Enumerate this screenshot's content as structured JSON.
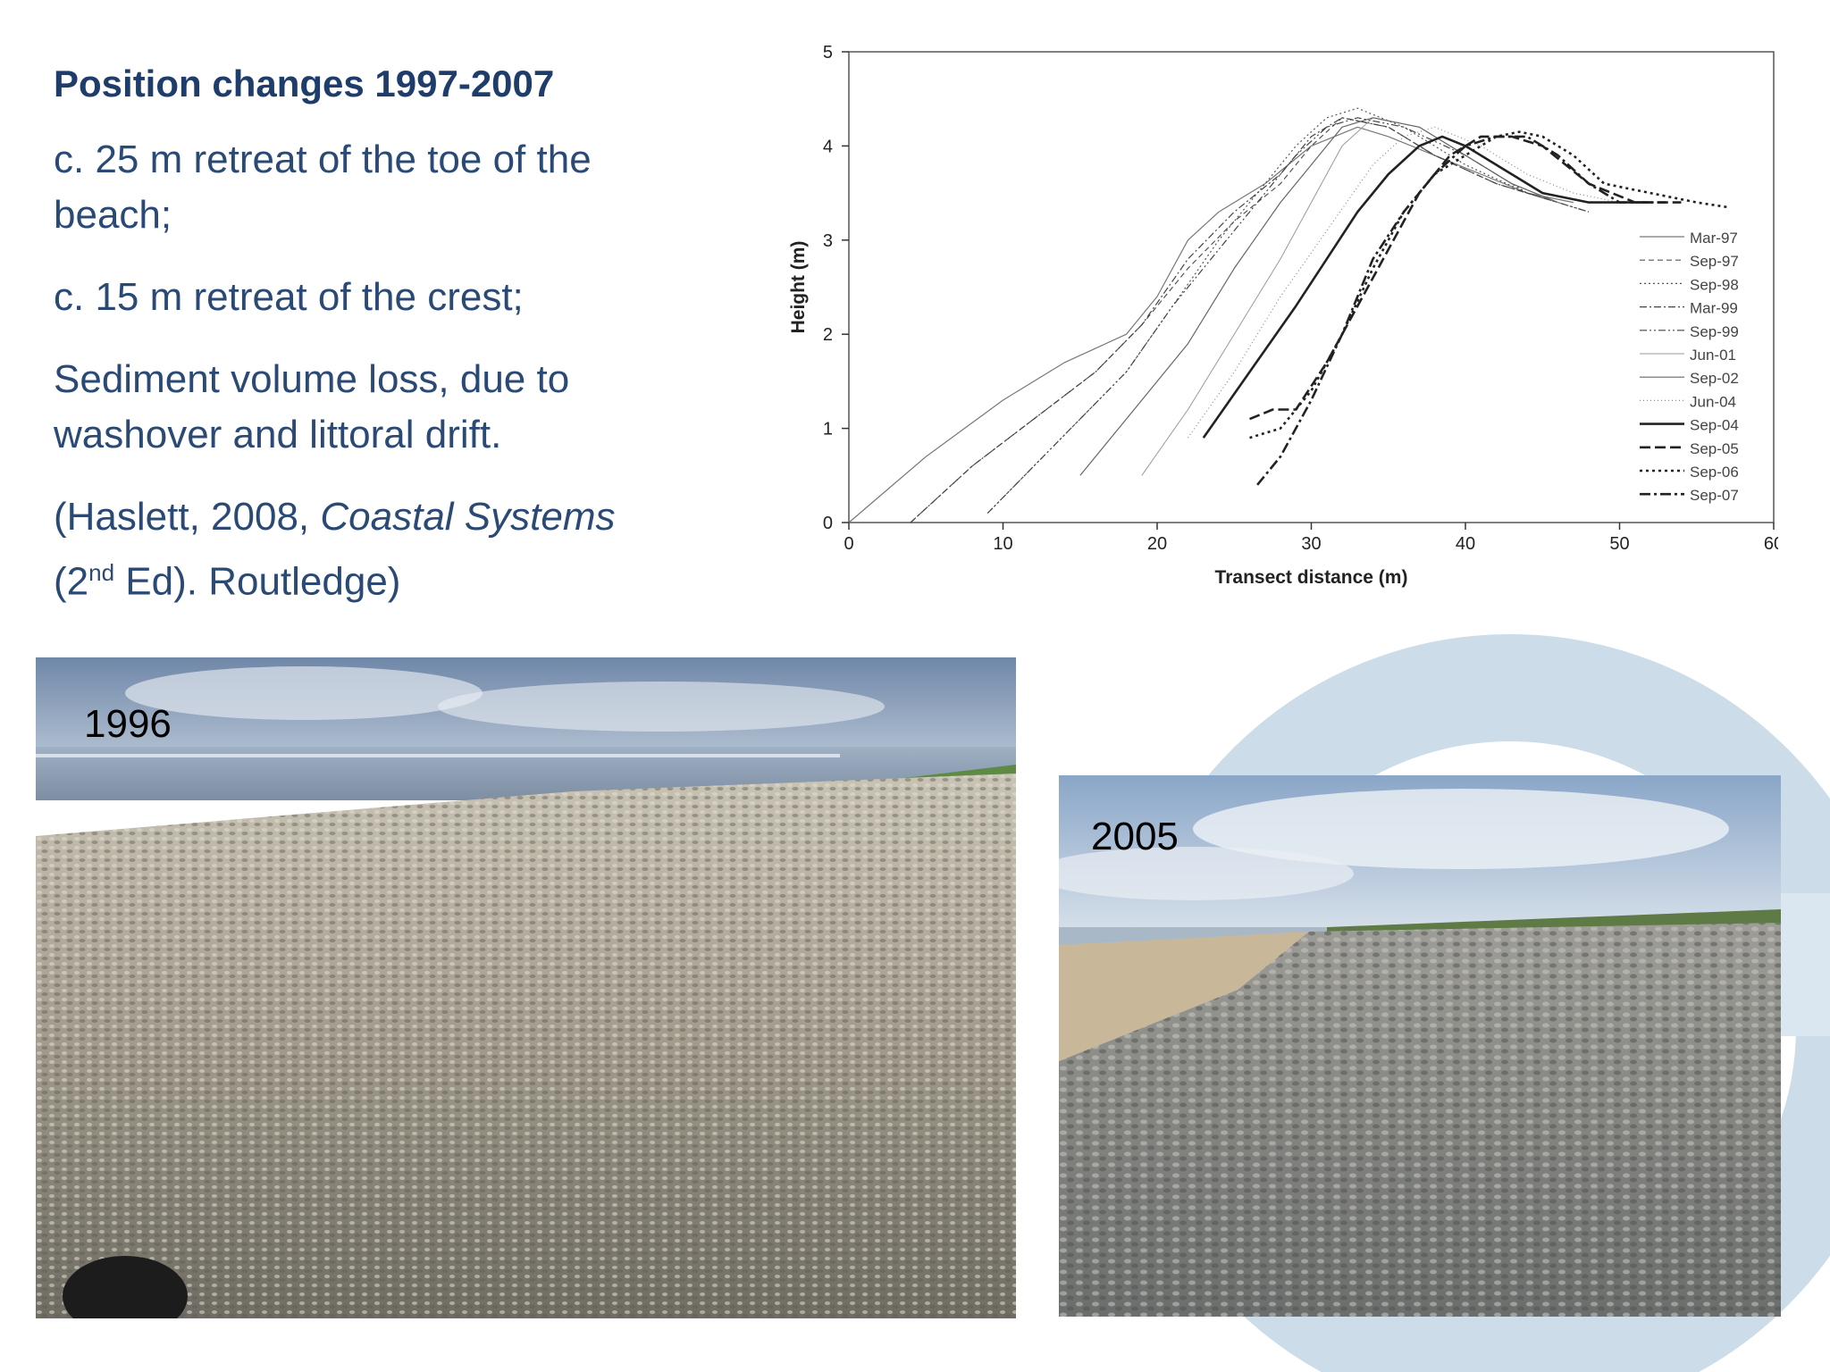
{
  "slide": {
    "title": "Position changes 1997-2007",
    "bullets": [
      "c. 25 m retreat of the toe of the beach;",
      "c. 15 m retreat of the crest;",
      "Sediment volume loss, due to washover and littoral drift."
    ],
    "citation": {
      "part1": "(Haslett, 2008, ",
      "italic": "Coastal Systems",
      "part2a": "(2",
      "superscript": "nd",
      "part2b": " Ed). Routledge)"
    }
  },
  "photos": [
    {
      "label": "1996",
      "description_icon": "gravel-beach-photo"
    },
    {
      "label": "2005",
      "description_icon": "gravel-beach-photo"
    }
  ],
  "colors": {
    "text": "#2a4a75",
    "title": "#1f3d6b",
    "logo": "#c7d8e6"
  },
  "chart_data": {
    "type": "line",
    "title": "",
    "xlabel": "Transect distance (m)",
    "ylabel": "Height (m)",
    "xlim": [
      0,
      60
    ],
    "ylim": [
      0,
      5
    ],
    "xticks": [
      0,
      10,
      20,
      30,
      40,
      50,
      60
    ],
    "yticks": [
      0,
      1,
      2,
      3,
      4,
      5
    ],
    "grid": false,
    "legend_position": "bottom-right",
    "series": [
      {
        "name": "Mar-97",
        "dash": "",
        "width": 1.2,
        "color": "#777777",
        "x": [
          0,
          5,
          10,
          14,
          18,
          20,
          22,
          24,
          27,
          30,
          33,
          35,
          38,
          41,
          44,
          47
        ],
        "y": [
          0,
          0.7,
          1.3,
          1.7,
          2.0,
          2.4,
          3.0,
          3.3,
          3.6,
          4.0,
          4.2,
          4.1,
          3.9,
          3.7,
          3.5,
          3.4
        ]
      },
      {
        "name": "Sep-97",
        "dash": "6,4",
        "width": 1.2,
        "color": "#555555",
        "x": [
          4,
          8,
          12,
          16,
          19,
          22,
          25,
          28,
          30,
          32,
          35,
          38,
          42,
          46
        ],
        "y": [
          0,
          0.6,
          1.1,
          1.6,
          2.1,
          2.7,
          3.2,
          3.6,
          4.0,
          4.3,
          4.2,
          3.9,
          3.6,
          3.4
        ]
      },
      {
        "name": "Sep-98",
        "dash": "2,3",
        "width": 1.2,
        "color": "#555555",
        "x": [
          9,
          12,
          15,
          18,
          21,
          24,
          27,
          29,
          31,
          33,
          36,
          40,
          44,
          48
        ],
        "y": [
          0.1,
          0.6,
          1.1,
          1.6,
          2.3,
          3.0,
          3.6,
          4.0,
          4.3,
          4.4,
          4.2,
          3.8,
          3.5,
          3.3
        ]
      },
      {
        "name": "Mar-99",
        "dash": "8,3,2,3",
        "width": 1.2,
        "color": "#444444",
        "x": [
          4,
          8,
          12,
          16,
          19,
          22,
          25,
          28,
          30,
          32,
          35,
          38,
          42,
          46
        ],
        "y": [
          0,
          0.6,
          1.1,
          1.6,
          2.1,
          2.8,
          3.3,
          3.7,
          4.1,
          4.3,
          4.2,
          3.9,
          3.6,
          3.4
        ]
      },
      {
        "name": "Sep-99",
        "dash": "8,3,2,3,2,3",
        "width": 1.2,
        "color": "#444444",
        "x": [
          9,
          12,
          15,
          18,
          21,
          24,
          27,
          29,
          31,
          33,
          36,
          40,
          44,
          48
        ],
        "y": [
          0.1,
          0.6,
          1.1,
          1.6,
          2.3,
          2.9,
          3.5,
          3.9,
          4.2,
          4.3,
          4.2,
          3.9,
          3.5,
          3.3
        ]
      },
      {
        "name": "Jun-01",
        "dash": "",
        "width": 1.0,
        "color": "#999999",
        "x": [
          19,
          22,
          25,
          28,
          30,
          32,
          34,
          37,
          40,
          43,
          46
        ],
        "y": [
          0.5,
          1.2,
          2.0,
          2.8,
          3.4,
          4.0,
          4.3,
          4.2,
          3.9,
          3.6,
          3.4
        ]
      },
      {
        "name": "Sep-02",
        "dash": "",
        "width": 1.2,
        "color": "#666666",
        "x": [
          15,
          17,
          19,
          22,
          25,
          28,
          30,
          32,
          34,
          37,
          40,
          43,
          46
        ],
        "y": [
          0.5,
          0.9,
          1.3,
          1.9,
          2.7,
          3.4,
          3.8,
          4.2,
          4.3,
          4.2,
          3.9,
          3.6,
          3.4
        ]
      },
      {
        "name": "Jun-04",
        "dash": "1,3",
        "width": 1.2,
        "color": "#888888",
        "x": [
          22,
          25,
          28,
          31,
          34,
          36,
          38,
          41,
          44,
          47,
          50
        ],
        "y": [
          0.9,
          1.6,
          2.4,
          3.1,
          3.8,
          4.1,
          4.2,
          4.0,
          3.7,
          3.5,
          3.4
        ]
      },
      {
        "name": "Sep-04",
        "dash": "",
        "width": 2.6,
        "color": "#222222",
        "x": [
          23,
          26,
          29,
          31,
          33,
          35,
          37,
          38.5,
          40,
          42,
          45,
          48,
          52
        ],
        "y": [
          0.9,
          1.6,
          2.3,
          2.8,
          3.3,
          3.7,
          4.0,
          4.1,
          4.0,
          3.8,
          3.5,
          3.4,
          3.4
        ]
      },
      {
        "name": "Sep-05",
        "dash": "12,5",
        "width": 2.6,
        "color": "#222222",
        "x": [
          26,
          27.5,
          29,
          31,
          33,
          35,
          37,
          39,
          41,
          43,
          45,
          48,
          51,
          54
        ],
        "y": [
          1.1,
          1.2,
          1.2,
          1.7,
          2.3,
          2.9,
          3.5,
          3.9,
          4.1,
          4.1,
          4.0,
          3.6,
          3.4,
          3.4
        ]
      },
      {
        "name": "Sep-06",
        "dash": "3,4",
        "width": 2.6,
        "color": "#222222",
        "x": [
          26,
          28,
          30,
          32,
          34,
          36,
          38,
          40,
          42,
          43.5,
          45,
          47,
          49,
          52,
          55,
          57
        ],
        "y": [
          0.9,
          1.0,
          1.4,
          2.0,
          2.7,
          3.3,
          3.7,
          3.9,
          4.1,
          4.15,
          4.1,
          3.9,
          3.6,
          3.5,
          3.4,
          3.35
        ]
      },
      {
        "name": "Sep-07",
        "dash": "12,4,3,4",
        "width": 2.6,
        "color": "#222222",
        "x": [
          26.5,
          28,
          30,
          32,
          34,
          36,
          38,
          40,
          42,
          44,
          46,
          48,
          50,
          53
        ],
        "y": [
          0.4,
          0.7,
          1.3,
          2.0,
          2.8,
          3.3,
          3.7,
          4.0,
          4.1,
          4.1,
          3.9,
          3.6,
          3.4,
          3.4
        ]
      }
    ]
  }
}
